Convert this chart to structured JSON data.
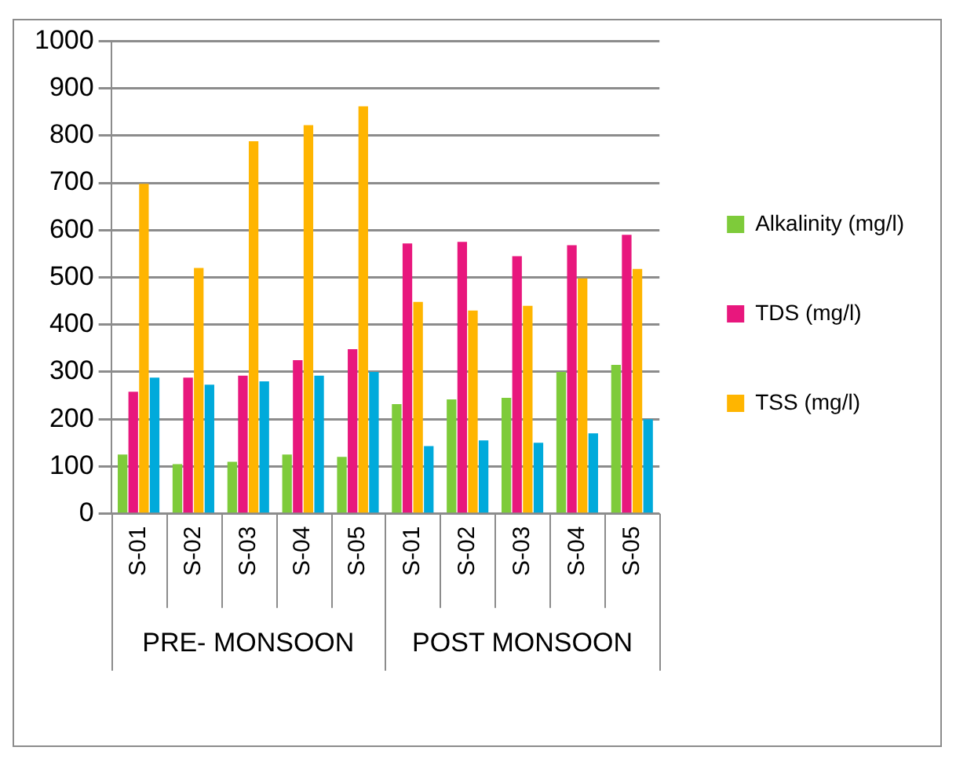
{
  "chart_data": {
    "type": "bar",
    "categories": [
      "S-01",
      "S-02",
      "S-03",
      "S-04",
      "S-05",
      "S-01",
      "S-02",
      "S-03",
      "S-04",
      "S-05"
    ],
    "series": [
      {
        "name": "Alkalinity (mg/l)",
        "color": "#7ecb3a",
        "values": [
          125,
          105,
          110,
          125,
          120,
          232,
          242,
          245,
          300,
          315
        ]
      },
      {
        "name": "TDS (mg/l)",
        "color": "#e8177d",
        "values": [
          258,
          288,
          292,
          325,
          348,
          572,
          575,
          545,
          568,
          590
        ]
      },
      {
        "name": "TSS (mg/l)",
        "color": "#ffb500",
        "values": [
          698,
          520,
          788,
          822,
          862,
          448,
          430,
          440,
          498,
          518
        ]
      },
      {
        "color": "#00aadb",
        "values": [
          288,
          273,
          280,
          292,
          300,
          143,
          155,
          150,
          170,
          200
        ]
      }
    ],
    "annotations": [
      "PRE- MONSOON",
      "POST MONSOON"
    ],
    "ylim": [
      0,
      1000
    ],
    "yticks": [
      0,
      100,
      200,
      300,
      400,
      500,
      600,
      700,
      800,
      900,
      1000
    ],
    "grid": "y",
    "legend": "right"
  }
}
